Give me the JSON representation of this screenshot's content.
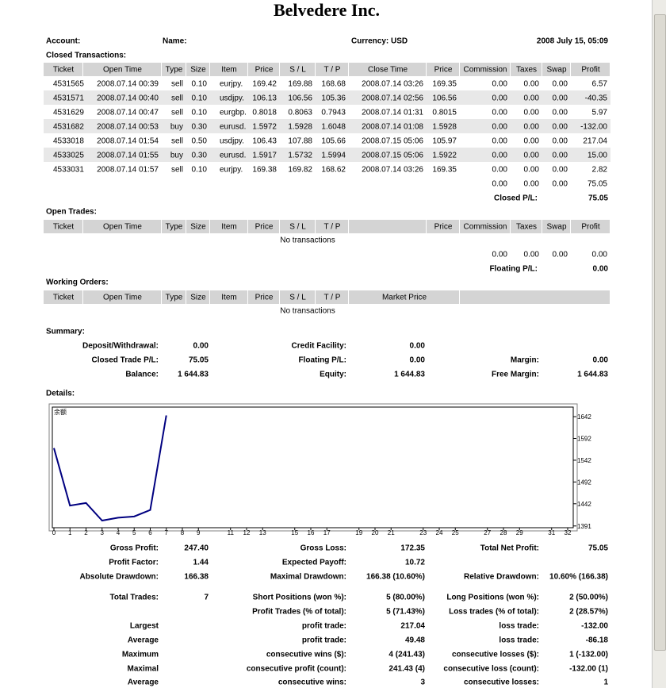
{
  "header": {
    "title": "Belvedere Inc.",
    "account": "Account:",
    "name": "Name:",
    "currency": "Currency: USD",
    "date": "2008 July 15, 05:09"
  },
  "closed_transactions": {
    "title": "Closed Transactions:",
    "columns": [
      "Ticket",
      "Open Time",
      "Type",
      "Size",
      "Item",
      "Price",
      "S / L",
      "T / P",
      "Close Time",
      "Price",
      "Commission",
      "Taxes",
      "Swap",
      "Profit"
    ],
    "rows": [
      [
        "4531565",
        "2008.07.14 00:39",
        "sell",
        "0.10",
        "eurjpy.",
        "169.42",
        "169.88",
        "168.68",
        "2008.07.14 03:26",
        "169.35",
        "0.00",
        "0.00",
        "0.00",
        "6.57"
      ],
      [
        "4531571",
        "2008.07.14 00:40",
        "sell",
        "0.10",
        "usdjpy.",
        "106.13",
        "106.56",
        "105.36",
        "2008.07.14 02:56",
        "106.56",
        "0.00",
        "0.00",
        "0.00",
        "-40.35"
      ],
      [
        "4531629",
        "2008.07.14 00:47",
        "sell",
        "0.10",
        "eurgbp.",
        "0.8018",
        "0.8063",
        "0.7943",
        "2008.07.14 01:31",
        "0.8015",
        "0.00",
        "0.00",
        "0.00",
        "5.97"
      ],
      [
        "4531682",
        "2008.07.14 00:53",
        "buy",
        "0.30",
        "eurusd.",
        "1.5972",
        "1.5928",
        "1.6048",
        "2008.07.14 01:08",
        "1.5928",
        "0.00",
        "0.00",
        "0.00",
        "-132.00"
      ],
      [
        "4533018",
        "2008.07.14 01:54",
        "sell",
        "0.50",
        "usdjpy.",
        "106.43",
        "107.88",
        "105.66",
        "2008.07.15 05:06",
        "105.97",
        "0.00",
        "0.00",
        "0.00",
        "217.04"
      ],
      [
        "4533025",
        "2008.07.14 01:55",
        "buy",
        "0.30",
        "eurusd.",
        "1.5917",
        "1.5732",
        "1.5994",
        "2008.07.15 05:06",
        "1.5922",
        "0.00",
        "0.00",
        "0.00",
        "15.00"
      ],
      [
        "4533031",
        "2008.07.14 01:57",
        "sell",
        "0.10",
        "eurjpy.",
        "169.38",
        "169.82",
        "168.62",
        "2008.07.14 03:26",
        "169.35",
        "0.00",
        "0.00",
        "0.00",
        "2.82"
      ]
    ],
    "totals": [
      "0.00",
      "0.00",
      "0.00",
      "75.05"
    ],
    "pl_label": "Closed P/L:",
    "pl_value": "75.05"
  },
  "open_trades": {
    "title": "Open Trades:",
    "columns": [
      "Ticket",
      "Open Time",
      "Type",
      "Size",
      "Item",
      "Price",
      "S / L",
      "T / P",
      "Price",
      "Commission",
      "Taxes",
      "Swap",
      "Profit"
    ],
    "message": "No transactions",
    "totals": [
      "0.00",
      "0.00",
      "0.00",
      "0.00"
    ],
    "pl_label": "Floating P/L:",
    "pl_value": "0.00"
  },
  "working_orders": {
    "title": "Working Orders:",
    "columns": [
      "Ticket",
      "Open Time",
      "Type",
      "Size",
      "Item",
      "Price",
      "S / L",
      "T / P",
      "Market Price"
    ],
    "message": "No transactions"
  },
  "summary": {
    "title": "Summary:",
    "rows": [
      [
        "Deposit/Withdrawal:",
        "0.00",
        "Credit Facility:",
        "0.00",
        null,
        null
      ],
      [
        "Closed Trade P/L:",
        "75.05",
        "Floating P/L:",
        "0.00",
        "Margin:",
        "0.00"
      ],
      [
        "Balance:",
        "1 644.83",
        "Equity:",
        "1 644.83",
        "Free Margin:",
        "1 644.83"
      ]
    ]
  },
  "details": {
    "title": "Details:",
    "chart": {
      "type": "line",
      "label": "余额",
      "x": [
        0,
        1,
        2,
        3,
        4,
        5,
        6,
        7
      ],
      "values": [
        1569.78,
        1437.78,
        1443.75,
        1403.4,
        1409.97,
        1412.79,
        1427.79,
        1644.83
      ],
      "color": "#000080",
      "xlim": [
        0,
        32
      ],
      "ylim": [
        1387,
        1664
      ],
      "xticks": [
        0,
        1,
        2,
        3,
        4,
        5,
        6,
        7,
        8,
        9,
        11,
        12,
        13,
        15,
        16,
        17,
        19,
        20,
        21,
        23,
        24,
        25,
        27,
        28,
        29,
        31,
        32
      ],
      "yticks": [
        1391,
        1442,
        1492,
        1542,
        1592,
        1642
      ]
    },
    "stats": [
      [
        "Gross Profit:",
        "247.40",
        "Gross Loss:",
        "172.35",
        "Total Net Profit:",
        "75.05"
      ],
      [
        "Profit Factor:",
        "1.44",
        "Expected Payoff:",
        "10.72",
        null,
        null
      ],
      [
        "Absolute Drawdown:",
        "166.38",
        "Maximal Drawdown:",
        "166.38 (10.60%)",
        "Relative Drawdown:",
        "10.60% (166.38)"
      ],
      [
        "Total Trades:",
        "7",
        "Short Positions (won %):",
        "5 (80.00%)",
        "Long Positions (won %):",
        "2 (50.00%)"
      ],
      [
        null,
        null,
        "Profit Trades (% of total):",
        "5 (71.43%)",
        "Loss trades (% of total):",
        "2 (28.57%)"
      ],
      [
        "Largest",
        null,
        "profit trade:",
        "217.04",
        "loss trade:",
        "-132.00"
      ],
      [
        "Average",
        null,
        "profit trade:",
        "49.48",
        "loss trade:",
        "-86.18"
      ],
      [
        "Maximum",
        null,
        "consecutive wins ($):",
        "4 (241.43)",
        "consecutive losses ($):",
        "1 (-132.00)"
      ],
      [
        "Maximal",
        null,
        "consecutive profit (count):",
        "241.43 (4)",
        "consecutive loss (count):",
        "-132.00 (1)"
      ],
      [
        "Average",
        null,
        "consecutive wins:",
        "3",
        "consecutive losses:",
        "1"
      ]
    ]
  }
}
